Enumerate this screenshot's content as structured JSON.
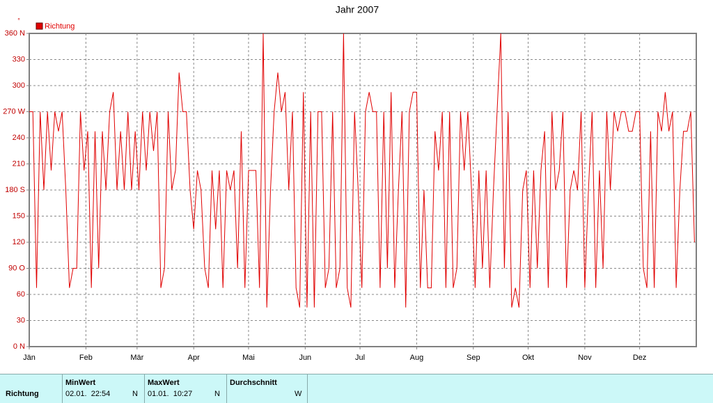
{
  "chart_data": {
    "type": "line",
    "title": "Jahr 2007",
    "unit": "°",
    "x": [
      0,
      2,
      4,
      6,
      8,
      10,
      12,
      14,
      16,
      18,
      20,
      22,
      24,
      26,
      28,
      30,
      32,
      34,
      36,
      38,
      40,
      42,
      44,
      46,
      48,
      50,
      52,
      54,
      56,
      58,
      60,
      62,
      64,
      66,
      68,
      70,
      72,
      74,
      76,
      78,
      80,
      82,
      84,
      86,
      88,
      90,
      92,
      94,
      96,
      98,
      100,
      102,
      104,
      106,
      108,
      110,
      112,
      114,
      116,
      118,
      120,
      122,
      124,
      126,
      128,
      130,
      132,
      134,
      136,
      138,
      140,
      142,
      144,
      146,
      148,
      150,
      152,
      154,
      156,
      158,
      160,
      162,
      164,
      166,
      168,
      170,
      172,
      174,
      176,
      178,
      180,
      182,
      184,
      186,
      188,
      190,
      192,
      194,
      196,
      198,
      200,
      202,
      204,
      206,
      208,
      210,
      212,
      214,
      216,
      218,
      220,
      222,
      224,
      226,
      228,
      230,
      232,
      234,
      236,
      238,
      240,
      242,
      244,
      246,
      248,
      250,
      252,
      254,
      256,
      258,
      260,
      262,
      264,
      266,
      268,
      270,
      272,
      274,
      276,
      278,
      280,
      282,
      284,
      286,
      288,
      290,
      292,
      294,
      296,
      298,
      300,
      302,
      304,
      306,
      308,
      310,
      312,
      314,
      316,
      318,
      320,
      322,
      324,
      326,
      328,
      330,
      332,
      334,
      336,
      338,
      340,
      342,
      344,
      346,
      348,
      350,
      352,
      354,
      356,
      358,
      360,
      362,
      364
    ],
    "xlim": [
      0,
      365
    ],
    "xticks": [
      {
        "value": 0,
        "label": "Jän"
      },
      {
        "value": 31,
        "label": "Feb"
      },
      {
        "value": 59,
        "label": "Mär"
      },
      {
        "value": 90,
        "label": "Apr"
      },
      {
        "value": 120,
        "label": "Mai"
      },
      {
        "value": 151,
        "label": "Jun"
      },
      {
        "value": 181,
        "label": "Jul"
      },
      {
        "value": 212,
        "label": "Aug"
      },
      {
        "value": 243,
        "label": "Sep"
      },
      {
        "value": 273,
        "label": "Okt"
      },
      {
        "value": 304,
        "label": "Nov"
      },
      {
        "value": 334,
        "label": "Dez"
      }
    ],
    "ylim": [
      0,
      360
    ],
    "yticks": [
      {
        "value": 0,
        "label": "0  N"
      },
      30,
      60,
      {
        "value": 90,
        "label": "90  O"
      },
      120,
      150,
      {
        "value": 180,
        "label": "180 S"
      },
      210,
      240,
      {
        "value": 270,
        "label": "270 W"
      },
      300,
      330,
      {
        "value": 360,
        "label": "360 N"
      }
    ],
    "grid": true,
    "legend": "top-left",
    "series": [
      {
        "name": "Richtung",
        "color": "#e00000",
        "values": [
          270,
          270,
          67.5,
          270,
          180,
          270,
          202.5,
          270,
          247.5,
          270,
          180,
          67.5,
          90,
          90,
          270,
          202.5,
          247.5,
          67.5,
          247.5,
          90,
          247.5,
          180,
          270,
          292.5,
          180,
          247.5,
          180,
          270,
          180,
          247.5,
          180,
          270,
          202.5,
          270,
          225,
          270,
          67.5,
          90,
          270,
          180,
          202.5,
          315,
          270,
          270,
          180,
          135,
          202.5,
          180,
          90,
          67.5,
          202.5,
          135,
          202.5,
          67.5,
          202.5,
          180,
          202.5,
          90,
          247.5,
          67.5,
          202.5,
          202.5,
          202.5,
          67.5,
          360,
          45,
          180,
          270,
          315,
          270,
          292.5,
          180,
          270,
          67.5,
          45,
          292.5,
          45,
          270,
          45,
          270,
          270,
          67.5,
          90,
          270,
          67.5,
          90,
          360,
          67.5,
          45,
          270,
          180,
          67.5,
          270,
          292.5,
          270,
          270,
          67.5,
          270,
          90,
          292.5,
          67.5,
          180,
          270,
          45,
          270,
          292.5,
          292.5,
          67.5,
          180,
          67.5,
          67.5,
          247.5,
          202.5,
          270,
          67.5,
          270,
          67.5,
          90,
          270,
          202.5,
          270,
          180,
          67.5,
          202.5,
          90,
          202.5,
          67.5,
          180,
          270,
          360,
          90,
          270,
          45,
          67.5,
          45,
          180,
          202.5,
          67.5,
          202.5,
          90,
          202.5,
          247.5,
          67.5,
          270,
          180,
          202.5,
          270,
          67.5,
          180,
          202.5,
          180,
          270,
          67.5,
          180,
          270,
          67.5,
          202.5,
          90,
          270,
          180,
          270,
          247.5,
          270,
          270,
          247.5,
          247.5,
          270,
          270,
          90,
          67.5,
          247.5,
          67.5,
          270,
          247.5,
          292.5,
          247.5,
          270,
          67.5,
          180,
          247.5,
          247.5,
          270,
          120
        ]
      }
    ]
  },
  "table": {
    "headers": [
      "MinWert",
      "MaxWert",
      "Durchschnitt"
    ],
    "rows": [
      [
        "Richtung",
        "02.01.  22:54",
        "N",
        "01.01.  10:27",
        "N",
        "W"
      ]
    ]
  }
}
